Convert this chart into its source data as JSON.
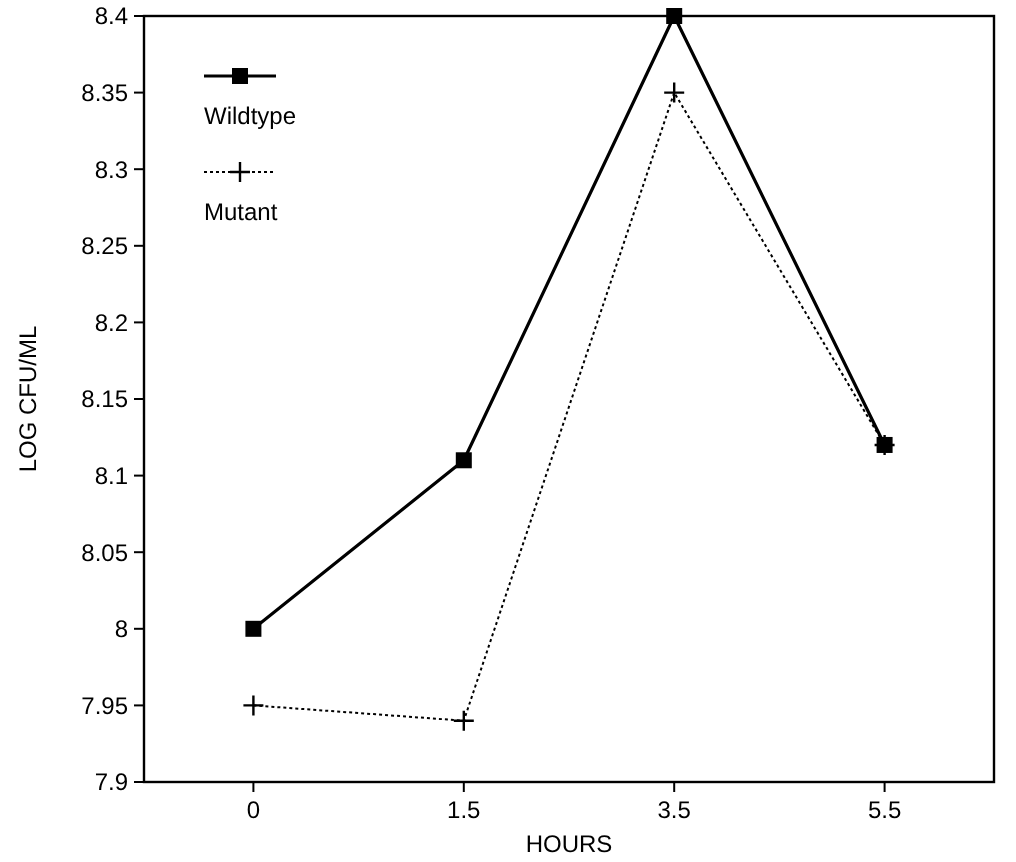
{
  "chart_data": {
    "type": "line",
    "xlabel": "HOURS",
    "ylabel": "LOG CFU/ML",
    "categories": [
      "0",
      "1.5",
      "3.5",
      "5.5"
    ],
    "ylim": [
      7.9,
      8.4
    ],
    "yticks": [
      7.9,
      7.95,
      8,
      8.05,
      8.1,
      8.15,
      8.2,
      8.25,
      8.3,
      8.35,
      8.4
    ],
    "legend": "top left",
    "series": [
      {
        "name": "Wildtype",
        "color": "#000000",
        "marker": "square",
        "line_style": "solid",
        "values": [
          8,
          8.11,
          8.4,
          8.12
        ]
      },
      {
        "name": "Mutant",
        "color": "#000000",
        "marker": "cross",
        "line_style": "dotted",
        "values": [
          7.95,
          7.94,
          8.35,
          8.12
        ]
      }
    ]
  }
}
